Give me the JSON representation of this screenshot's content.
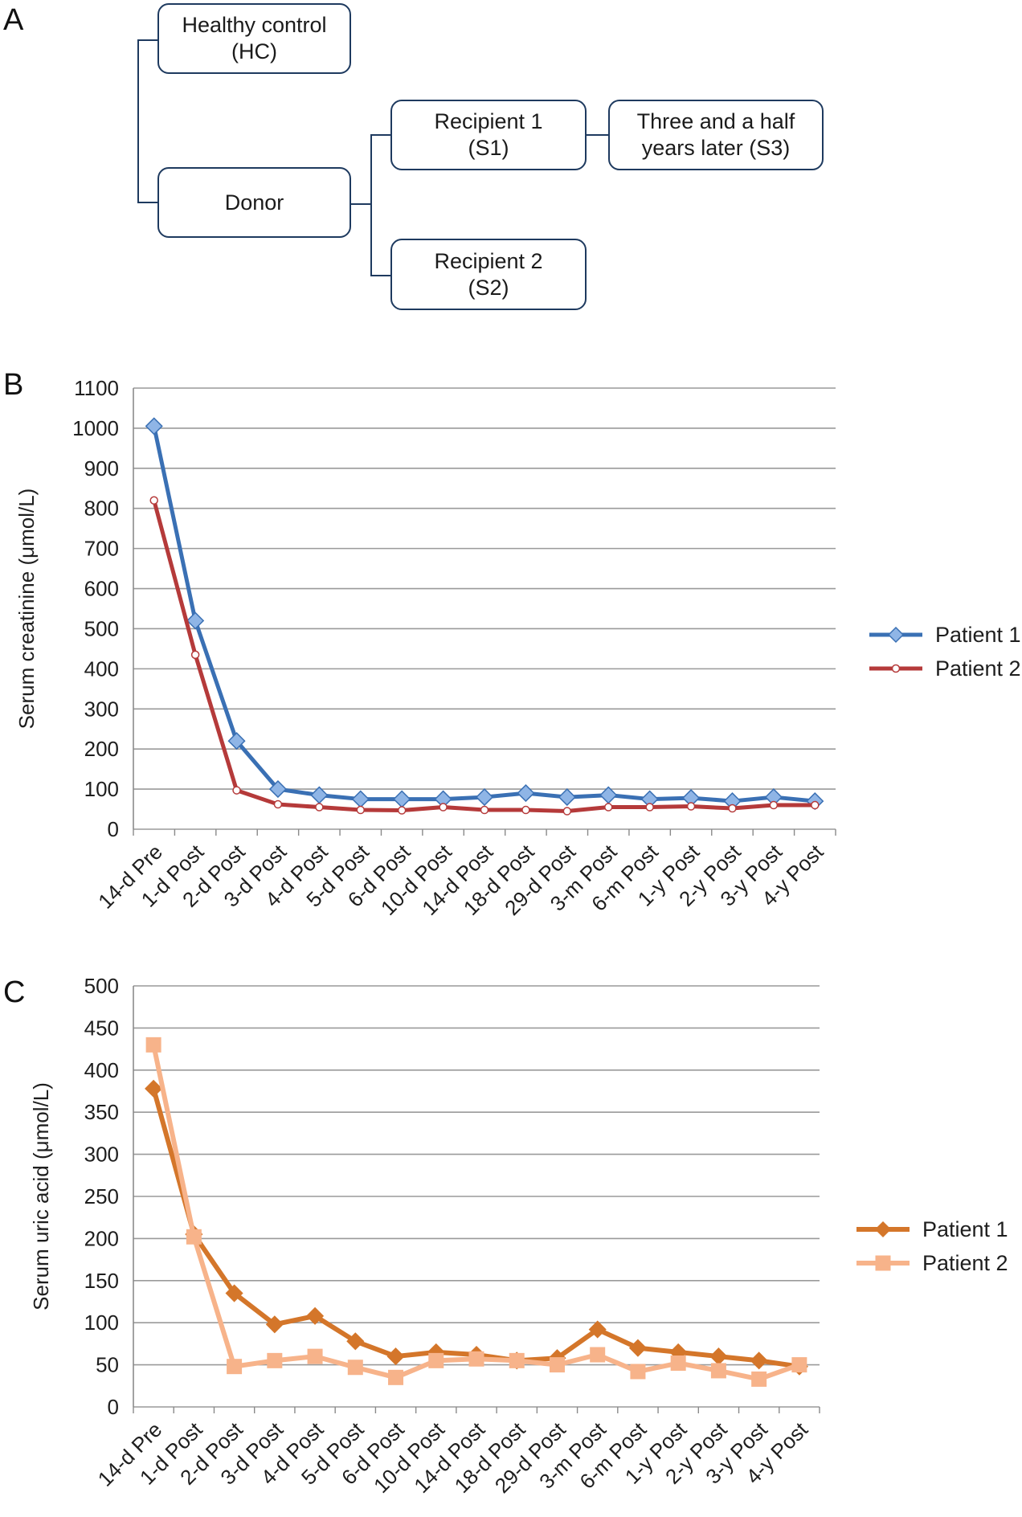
{
  "panels": {
    "a": "A",
    "b": "B",
    "c": "C"
  },
  "diagram": {
    "healthy_control": "Healthy control\n(HC)",
    "donor": "Donor",
    "recipient1": "Recipient 1\n(S1)",
    "recipient2": "Recipient 2\n(S2)",
    "later": "Three and a half\nyears later (S3)"
  },
  "chart_data": [
    {
      "type": "line",
      "title": "",
      "xlabel": "",
      "ylabel": "Serum creatinine (μmol/L)",
      "ylim": [
        0,
        1100
      ],
      "yticks": [
        0,
        100,
        200,
        300,
        400,
        500,
        600,
        700,
        800,
        900,
        1000,
        1100
      ],
      "grid": true,
      "legend_position": "right",
      "categories": [
        "14-d Pre",
        "1-d Post",
        "2-d Post",
        "3-d Post",
        "4-d Post",
        "5-d Post",
        "6-d Post",
        "10-d Post",
        "14-d Post",
        "18-d Post",
        "29-d Post",
        "3-m Post",
        "6-m Post",
        "1-y Post",
        "2-y Post",
        "3-y Post",
        "4-y Post"
      ],
      "series": [
        {
          "name": "Patient 1",
          "color": "#3a70b4",
          "marker": "diamond",
          "values": [
            1005,
            520,
            220,
            100,
            85,
            75,
            75,
            75,
            80,
            90,
            80,
            85,
            75,
            78,
            70,
            80,
            70
          ]
        },
        {
          "name": "Patient 2",
          "color": "#b53a3a",
          "marker": "circle",
          "values": [
            820,
            435,
            97,
            62,
            55,
            48,
            47,
            55,
            48,
            48,
            45,
            55,
            55,
            57,
            52,
            60,
            60
          ]
        }
      ]
    },
    {
      "type": "line",
      "title": "",
      "xlabel": "",
      "ylabel": "Serum uric acid (μmol/L)",
      "ylim": [
        0,
        500
      ],
      "yticks": [
        0,
        50,
        100,
        150,
        200,
        250,
        300,
        350,
        400,
        450,
        500
      ],
      "grid": true,
      "legend_position": "right",
      "categories": [
        "14-d Pre",
        "1-d Post",
        "2-d Post",
        "3-d Post",
        "4-d Post",
        "5-d Post",
        "6-d Post",
        "10-d Post",
        "14-d Post",
        "18-d Post",
        "29-d Post",
        "3-m Post",
        "6-m Post",
        "1-y Post",
        "2-y Post",
        "3-y Post",
        "4-y Post"
      ],
      "series": [
        {
          "name": "Patient 1",
          "color": "#d4762a",
          "marker": "diamond",
          "values": [
            378,
            205,
            135,
            98,
            108,
            78,
            60,
            65,
            62,
            55,
            58,
            92,
            70,
            65,
            60,
            55,
            48
          ]
        },
        {
          "name": "Patient 2",
          "color": "#f7b38a",
          "marker": "square",
          "values": [
            430,
            202,
            48,
            55,
            60,
            47,
            35,
            55,
            57,
            55,
            50,
            62,
            42,
            52,
            43,
            33,
            50
          ]
        }
      ]
    }
  ]
}
